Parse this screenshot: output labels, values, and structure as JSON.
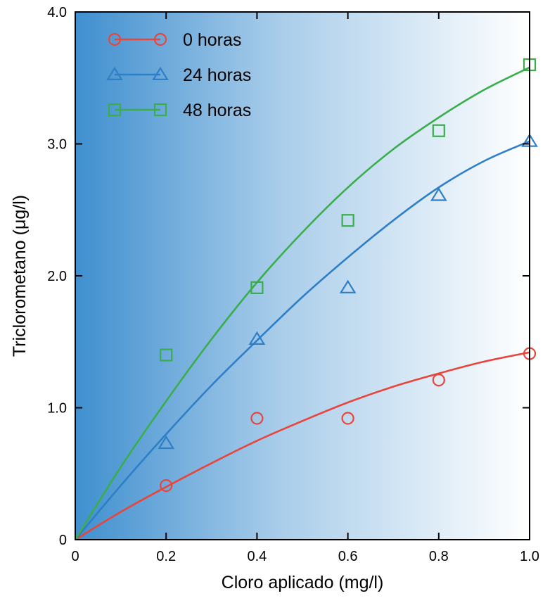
{
  "chart_data": {
    "type": "scatter",
    "title": "",
    "xlabel": "Cloro aplicado (mg/l)",
    "ylabel": "Triclorometano (μg/l)",
    "xlim": [
      0,
      1.0
    ],
    "ylim": [
      0,
      4.0
    ],
    "x_ticks": [
      0,
      0.2,
      0.4,
      0.6,
      0.8,
      1.0
    ],
    "x_tick_labels": [
      "0",
      "0.2",
      "0.4",
      "0.6",
      "0.8",
      "1.0"
    ],
    "y_ticks": [
      0,
      1.0,
      2.0,
      3.0,
      4.0
    ],
    "y_tick_labels": [
      "0",
      "1.0",
      "2.0",
      "3.0",
      "4.0"
    ],
    "grid": false,
    "legend_position": "top-left",
    "background": "gradient blue-to-white (left to right)",
    "series": [
      {
        "name": "0 horas",
        "marker": "circle",
        "color": "#e8453c",
        "x": [
          0.2,
          0.4,
          0.6,
          0.8,
          1.0
        ],
        "y": [
          0.41,
          0.92,
          0.92,
          1.21,
          1.41
        ],
        "fit_x": [
          0,
          0.1,
          0.2,
          0.3,
          0.4,
          0.5,
          0.6,
          0.7,
          0.8,
          0.9,
          1.0
        ],
        "fit_y": [
          0,
          0.21,
          0.4,
          0.58,
          0.75,
          0.9,
          1.04,
          1.16,
          1.26,
          1.35,
          1.42
        ]
      },
      {
        "name": "24 horas",
        "marker": "triangle",
        "color": "#2f7fc8",
        "x": [
          0.2,
          0.4,
          0.6,
          0.8,
          1.0
        ],
        "y": [
          0.73,
          1.52,
          1.91,
          2.61,
          3.02
        ],
        "fit_x": [
          0,
          0.1,
          0.2,
          0.3,
          0.4,
          0.5,
          0.6,
          0.7,
          0.8,
          0.9,
          1.0
        ],
        "fit_y": [
          0,
          0.41,
          0.8,
          1.17,
          1.51,
          1.84,
          2.14,
          2.42,
          2.67,
          2.87,
          3.02
        ]
      },
      {
        "name": "48 horas",
        "marker": "square",
        "color": "#3aae4c",
        "x": [
          0.2,
          0.4,
          0.6,
          0.8,
          1.0
        ],
        "y": [
          1.4,
          1.91,
          2.42,
          3.1,
          3.6
        ],
        "fit_x": [
          0,
          0.1,
          0.2,
          0.3,
          0.4,
          0.5,
          0.6,
          0.7,
          0.8,
          0.9,
          1.0
        ],
        "fit_y": [
          0,
          0.55,
          1.05,
          1.52,
          1.95,
          2.33,
          2.67,
          2.96,
          3.2,
          3.41,
          3.58
        ]
      }
    ]
  }
}
